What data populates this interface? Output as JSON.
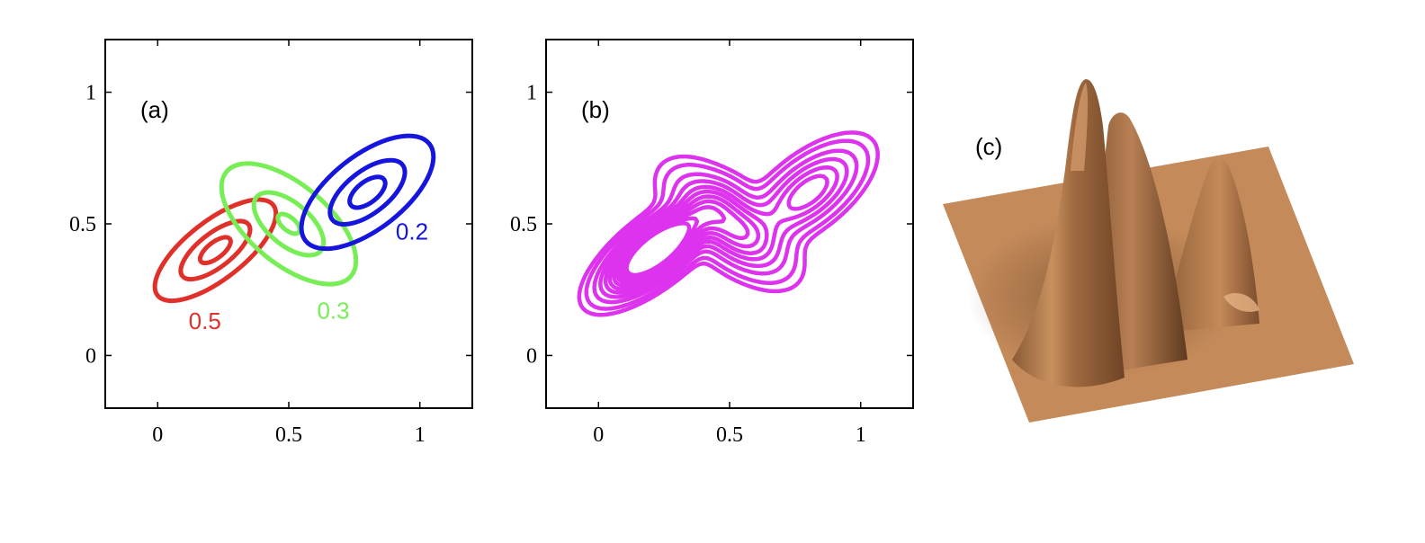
{
  "chart_data": [
    {
      "type": "contour",
      "panel_label": "(a)",
      "title": "",
      "xlabel": "",
      "ylabel": "",
      "xlim": [
        -0.2,
        1.2
      ],
      "ylim": [
        -0.2,
        1.2
      ],
      "xticks": [
        0,
        0.5,
        1
      ],
      "yticks": [
        0,
        0.5,
        1
      ],
      "xtick_labels": [
        "0",
        "0.5",
        "1"
      ],
      "ytick_labels": [
        "0",
        "0.5",
        "1"
      ],
      "grid": false,
      "components": [
        {
          "weight_label": "0.5",
          "color": "#e0302a",
          "center": [
            0.22,
            0.4
          ],
          "angle_deg": 38,
          "radii": [
            [
              0.28,
              0.11
            ],
            [
              0.16,
              0.064
            ],
            [
              0.07,
              0.03
            ]
          ],
          "label_at": [
            0.18,
            0.1
          ]
        },
        {
          "weight_label": "0.3",
          "color": "#77ee55",
          "center": [
            0.5,
            0.5
          ],
          "angle_deg": -40,
          "radii": [
            [
              0.31,
              0.15
            ],
            [
              0.16,
              0.08
            ],
            [
              0.05,
              0.025
            ]
          ],
          "label_at": [
            0.67,
            0.14
          ]
        },
        {
          "weight_label": "0.2",
          "color": "#1515dd",
          "center": [
            0.8,
            0.62
          ],
          "angle_deg": 38,
          "radii": [
            [
              0.3,
              0.14
            ],
            [
              0.17,
              0.08
            ],
            [
              0.08,
              0.04
            ]
          ],
          "label_at": [
            0.97,
            0.44
          ]
        }
      ]
    },
    {
      "type": "contour",
      "panel_label": "(b)",
      "title": "",
      "xlabel": "",
      "ylabel": "",
      "xlim": [
        -0.2,
        1.2
      ],
      "ylim": [
        -0.2,
        1.2
      ],
      "xticks": [
        0,
        0.5,
        1
      ],
      "yticks": [
        0,
        0.5,
        1
      ],
      "xtick_labels": [
        "0",
        "0.5",
        "1"
      ],
      "ytick_labels": [
        "0",
        "0.5",
        "1"
      ],
      "grid": false,
      "color": "#dd33ee",
      "levels": [
        0.25,
        0.5,
        1.0,
        1.6,
        2.3,
        3.0,
        3.8,
        4.6,
        5.4,
        6.2,
        7.0
      ]
    },
    {
      "type": "surface",
      "panel_label": "(c)",
      "title": "",
      "color": "#c98f5e"
    }
  ]
}
